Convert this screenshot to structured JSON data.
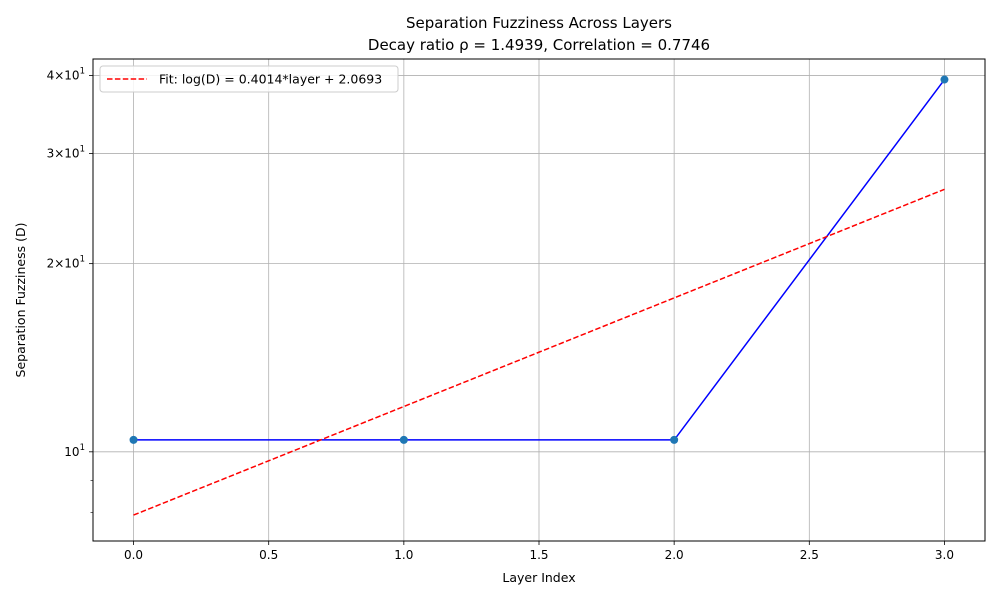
{
  "chart_data": {
    "type": "line",
    "title": "Separation Fuzziness Across Layers",
    "subtitle": "Decay ratio ρ = 1.4939, Correlation = 0.7746",
    "xlabel": "Layer Index",
    "ylabel": "Separation Fuzziness (D)",
    "yscale": "log",
    "xlim": [
      -0.15,
      3.15
    ],
    "ylim": [
      7.2,
      42.5
    ],
    "x_ticks": [
      {
        "value": 0.0,
        "label": "0.0"
      },
      {
        "value": 0.5,
        "label": "0.5"
      },
      {
        "value": 1.0,
        "label": "1.0"
      },
      {
        "value": 1.5,
        "label": "1.5"
      },
      {
        "value": 2.0,
        "label": "2.0"
      },
      {
        "value": 2.5,
        "label": "2.5"
      },
      {
        "value": 3.0,
        "label": "3.0"
      }
    ],
    "y_major_ticks": [
      {
        "value": 10,
        "base": "10",
        "exp": "1",
        "coef": ""
      },
      {
        "value": 20,
        "base": "10",
        "exp": "1",
        "coef": "2×"
      },
      {
        "value": 30,
        "base": "10",
        "exp": "1",
        "coef": "3×"
      },
      {
        "value": 40,
        "base": "10",
        "exp": "1",
        "coef": "4×"
      }
    ],
    "y_minor_ticks": [
      8,
      9
    ],
    "grid": true,
    "series": [
      {
        "name": "",
        "style": "solid",
        "color": "#0000ff",
        "marker_color": "#1f77b4",
        "x": [
          0,
          1,
          2,
          3
        ],
        "y": [
          10.45,
          10.45,
          10.45,
          39.4
        ]
      },
      {
        "name": "Fit: log(D) = 0.4014*layer + 2.0693",
        "style": "dashed",
        "color": "#ff0000",
        "x": [
          0,
          3
        ],
        "y": [
          7.92,
          26.3
        ]
      }
    ],
    "legend_position": "upper-left"
  }
}
